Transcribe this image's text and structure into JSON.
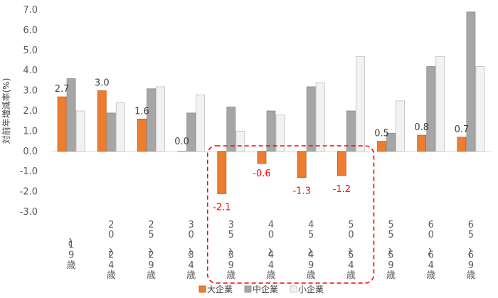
{
  "chart_data": {
    "type": "bar",
    "ylabel": "対前年増減率(%)",
    "ylim": [
      -3.0,
      7.0
    ],
    "yticks": [
      "7.0",
      "6.0",
      "5.0",
      "4.0",
      "3.0",
      "2.0",
      "1.0",
      "0.0",
      "-1.0",
      "-2.0",
      "-3.0"
    ],
    "categories": [
      "~19歳",
      "20~24歳",
      "25~29歳",
      "30~34歳",
      "35~39歳",
      "40~44歳",
      "45~49歳",
      "50~54歳",
      "55~59歳",
      "60~64歳",
      "65~69歳"
    ],
    "series": [
      {
        "name": "大企業",
        "color": "#ED7D31",
        "values": [
          2.7,
          3.0,
          1.6,
          0.0,
          -2.1,
          -0.6,
          -1.3,
          -1.2,
          0.5,
          0.8,
          0.7
        ],
        "data_labels": [
          "2.7",
          "3.0",
          "1.6",
          "0.0",
          "-2.1",
          "-0.6",
          "-1.3",
          "-1.2",
          "0.5",
          "0.8",
          "0.7"
        ]
      },
      {
        "name": "中企業",
        "color": "#A6A6A6",
        "values": [
          3.6,
          1.9,
          3.1,
          1.9,
          2.2,
          2.0,
          3.2,
          2.0,
          0.9,
          4.2,
          6.9
        ]
      },
      {
        "name": "小企業",
        "color": "#F2F2F2",
        "values": [
          2.0,
          2.4,
          3.2,
          2.8,
          1.0,
          1.8,
          3.4,
          4.7,
          2.5,
          4.7,
          4.2
        ]
      }
    ],
    "negative_label_color": "#FF0000",
    "highlight_box": {
      "from_category": "35~39歳",
      "to_category": "50~54歳",
      "color": "#FF0000",
      "style": "dashed"
    },
    "grid": false,
    "legend_position": "bottom"
  }
}
